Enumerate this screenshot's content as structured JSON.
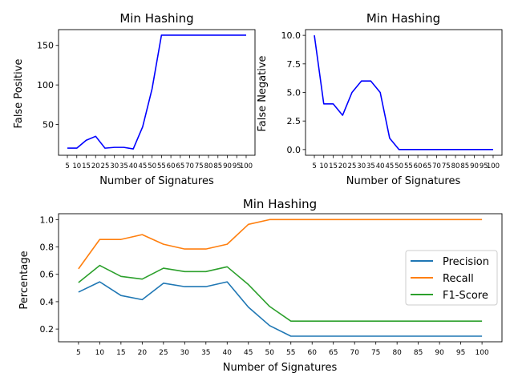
{
  "chart_data": [
    {
      "type": "line",
      "title": "Min Hashing",
      "xlabel": "Number of Signatures",
      "ylabel": "False Positive",
      "x": [
        5,
        10,
        15,
        20,
        25,
        30,
        35,
        40,
        45,
        50,
        55,
        60,
        65,
        70,
        75,
        80,
        85,
        90,
        95,
        100
      ],
      "yticks": [
        50,
        100,
        150
      ],
      "ylim": [
        11,
        170
      ],
      "series": [
        {
          "values": [
            20,
            20,
            30,
            35,
            20,
            21,
            21,
            19,
            47,
            95,
            163,
            163,
            163,
            163,
            163,
            163,
            163,
            163,
            163,
            163
          ],
          "color": "#0000ff"
        }
      ]
    },
    {
      "type": "line",
      "title": "Min Hashing",
      "xlabel": "Number of Signatures",
      "ylabel": "False Negative",
      "x": [
        5,
        10,
        15,
        20,
        25,
        30,
        35,
        40,
        45,
        50,
        55,
        60,
        65,
        70,
        75,
        80,
        85,
        90,
        95,
        100
      ],
      "yticks": [
        "0.0",
        "2.5",
        "5.0",
        "7.5",
        "10.0"
      ],
      "ylim": [
        -0.5,
        10.5
      ],
      "series": [
        {
          "values": [
            10,
            4,
            4,
            3,
            5,
            6,
            6,
            5,
            1,
            0,
            0,
            0,
            0,
            0,
            0,
            0,
            0,
            0,
            0,
            0
          ],
          "color": "#0000ff"
        }
      ]
    },
    {
      "type": "line",
      "title": "Min Hashing",
      "xlabel": "Number of Signatures",
      "ylabel": "Percentage",
      "x": [
        5,
        10,
        15,
        20,
        25,
        30,
        35,
        40,
        45,
        50,
        55,
        60,
        65,
        70,
        75,
        80,
        85,
        90,
        95,
        100
      ],
      "yticks": [
        "0.2",
        "0.4",
        "0.6",
        "0.8",
        "1.0"
      ],
      "ylim": [
        0.107,
        1.043
      ],
      "legend": "center-right",
      "series": [
        {
          "name": "Precision",
          "color": "#1f77b4",
          "values": [
            0.47,
            0.545,
            0.445,
            0.415,
            0.535,
            0.51,
            0.51,
            0.545,
            0.36,
            0.225,
            0.148,
            0.148,
            0.148,
            0.148,
            0.148,
            0.148,
            0.148,
            0.148,
            0.148,
            0.148
          ]
        },
        {
          "name": "Recall",
          "color": "#ff7f0e",
          "values": [
            0.64,
            0.855,
            0.855,
            0.89,
            0.82,
            0.785,
            0.785,
            0.82,
            0.965,
            1.0,
            1.0,
            1.0,
            1.0,
            1.0,
            1.0,
            1.0,
            1.0,
            1.0,
            1.0,
            1.0
          ]
        },
        {
          "name": "F1-Score",
          "color": "#2ca02c",
          "values": [
            0.54,
            0.665,
            0.585,
            0.565,
            0.645,
            0.62,
            0.62,
            0.655,
            0.525,
            0.365,
            0.258,
            0.258,
            0.258,
            0.258,
            0.258,
            0.258,
            0.258,
            0.258,
            0.258,
            0.258
          ]
        }
      ]
    }
  ]
}
